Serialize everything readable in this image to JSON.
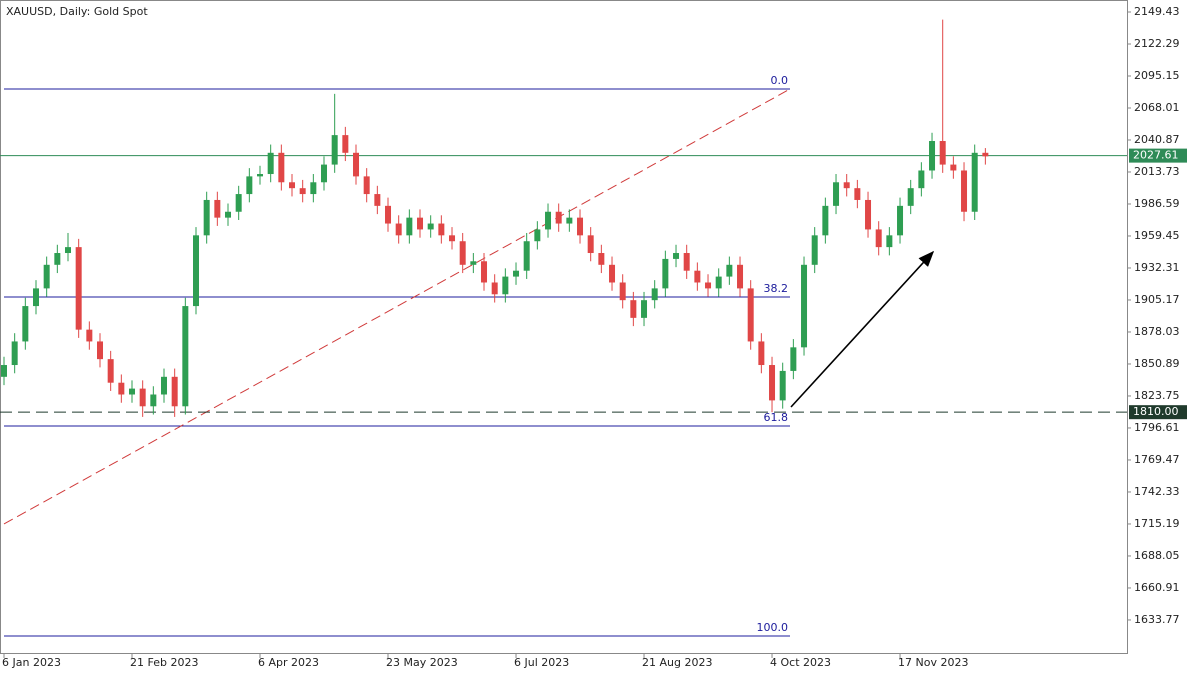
{
  "chart_data": {
    "type": "candlestick",
    "title": "XAUUSD, Daily:  Gold Spot",
    "categories": [
      "6 Jan 2023",
      null,
      null,
      null,
      null,
      null,
      null,
      null,
      null,
      null,
      null,
      null,
      "21 Feb 2023",
      null,
      null,
      null,
      null,
      null,
      null,
      null,
      null,
      null,
      null,
      null,
      "6 Apr 2023",
      null,
      null,
      null,
      null,
      null,
      null,
      null,
      null,
      null,
      null,
      null,
      "23 May 2023",
      null,
      null,
      null,
      null,
      null,
      null,
      null,
      null,
      null,
      null,
      null,
      "6 Jul 2023",
      null,
      null,
      null,
      null,
      null,
      null,
      null,
      null,
      null,
      null,
      null,
      "21 Aug 2023",
      null,
      null,
      null,
      null,
      null,
      null,
      null,
      null,
      null,
      null,
      null,
      "4 Oct 2023",
      null,
      null,
      null,
      null,
      null,
      null,
      null,
      null,
      null,
      null,
      null,
      "17 Nov 2023",
      null,
      null,
      null,
      null,
      null,
      null,
      null,
      null
    ],
    "open": [
      1840,
      1850,
      1870,
      1900,
      1915,
      1935,
      1945,
      1950,
      1880,
      1870,
      1855,
      1835,
      1825,
      1830,
      1815,
      1825,
      1840,
      1815,
      1900,
      1960,
      1990,
      1975,
      1980,
      1995,
      2010,
      2012,
      2030,
      2005,
      2000,
      1995,
      2005,
      2020,
      2045,
      2030,
      2010,
      1995,
      1985,
      1970,
      1960,
      1975,
      1965,
      1970,
      1960,
      1955,
      1935,
      1938,
      1920,
      1910,
      1925,
      1930,
      1955,
      1965,
      1980,
      1970,
      1975,
      1960,
      1945,
      1935,
      1920,
      1905,
      1890,
      1905,
      1915,
      1940,
      1945,
      1930,
      1920,
      1915,
      1925,
      1935,
      1915,
      1870,
      1850,
      1820,
      1845,
      1865,
      1935,
      1960,
      1985,
      2005,
      2000,
      1990,
      1965,
      1950,
      1960,
      1985,
      2000,
      2015,
      2040,
      2020,
      2015,
      1980,
      2030
    ],
    "high": [
      1857,
      1877,
      1907,
      1922,
      1942,
      1952,
      1962,
      1957,
      1887,
      1877,
      1862,
      1842,
      1837,
      1837,
      1832,
      1847,
      1847,
      1907,
      1967,
      1997,
      1997,
      1987,
      2002,
      2017,
      2019,
      2037,
      2037,
      2012,
      2007,
      2012,
      2027,
      2080,
      2052,
      2037,
      2017,
      2002,
      1992,
      1977,
      1982,
      1982,
      1977,
      1977,
      1967,
      1962,
      1945,
      1945,
      1927,
      1932,
      1937,
      1962,
      1972,
      1987,
      1987,
      1982,
      1982,
      1967,
      1952,
      1942,
      1927,
      1912,
      1912,
      1922,
      1947,
      1952,
      1952,
      1937,
      1927,
      1932,
      1942,
      1942,
      1922,
      1877,
      1857,
      1852,
      1872,
      1942,
      1967,
      1992,
      2012,
      2012,
      2007,
      1997,
      1972,
      1967,
      1992,
      2007,
      2022,
      2047,
      2143,
      2027,
      2022,
      2037,
      2034
    ],
    "low": [
      1833,
      1843,
      1863,
      1893,
      1908,
      1928,
      1938,
      1873,
      1863,
      1848,
      1828,
      1818,
      1818,
      1806,
      1808,
      1818,
      1806,
      1808,
      1893,
      1953,
      1968,
      1968,
      1973,
      1988,
      2003,
      2005,
      1998,
      1993,
      1988,
      1988,
      1998,
      2013,
      2023,
      2003,
      1988,
      1978,
      1963,
      1953,
      1953,
      1958,
      1958,
      1953,
      1948,
      1928,
      1928,
      1913,
      1903,
      1903,
      1918,
      1923,
      1948,
      1958,
      1963,
      1963,
      1953,
      1938,
      1928,
      1913,
      1898,
      1883,
      1883,
      1898,
      1908,
      1933,
      1923,
      1913,
      1908,
      1908,
      1918,
      1908,
      1863,
      1843,
      1810,
      1813,
      1838,
      1858,
      1928,
      1953,
      1978,
      1993,
      1983,
      1958,
      1943,
      1943,
      1953,
      1978,
      1993,
      2008,
      2013,
      2008,
      1972,
      1973,
      2020
    ],
    "close": [
      1850,
      1870,
      1900,
      1915,
      1935,
      1945,
      1950,
      1880,
      1870,
      1855,
      1835,
      1825,
      1830,
      1815,
      1825,
      1840,
      1815,
      1900,
      1960,
      1990,
      1975,
      1980,
      1995,
      2010,
      2012,
      2030,
      2005,
      2000,
      1995,
      2005,
      2020,
      2045,
      2030,
      2010,
      1995,
      1985,
      1970,
      1960,
      1975,
      1965,
      1970,
      1960,
      1955,
      1935,
      1938,
      1920,
      1910,
      1925,
      1930,
      1955,
      1965,
      1980,
      1970,
      1975,
      1960,
      1945,
      1935,
      1920,
      1905,
      1890,
      1905,
      1915,
      1940,
      1945,
      1930,
      1920,
      1915,
      1925,
      1935,
      1915,
      1870,
      1850,
      1820,
      1845,
      1865,
      1935,
      1960,
      1985,
      2005,
      2000,
      1990,
      1965,
      1950,
      1960,
      1985,
      2000,
      2015,
      2040,
      2020,
      2015,
      1980,
      2030,
      2027
    ],
    "up_color": "#2e9e52",
    "down_color": "#e04646",
    "ylim": [
      1604.9,
      2159.6
    ],
    "yticks": [
      2149.43,
      2122.29,
      2095.15,
      2068.01,
      2040.87,
      2013.73,
      1986.59,
      1959.45,
      1932.31,
      1905.17,
      1878.03,
      1850.89,
      1823.75,
      1796.61,
      1769.47,
      1742.33,
      1715.19,
      1688.05,
      1660.91,
      1633.77
    ],
    "fib_levels": [
      {
        "label": "0.0",
        "price": 2084.1
      },
      {
        "label": "38.2",
        "price": 1907.7
      },
      {
        "label": "61.8",
        "price": 1798.3
      },
      {
        "label": "100.0",
        "price": 1620.2
      }
    ],
    "fib_color": "#1c1c9c",
    "trendline": {
      "start": 1715.2,
      "end": 2084.1,
      "color": "#d03a3a"
    },
    "price_lines": [
      {
        "price": 2027.61,
        "color": "#2e8b57",
        "dashed": false
      },
      {
        "price": 1810,
        "label": "1810.00",
        "color": "#1f3a2c",
        "dashed": true
      }
    ]
  }
}
